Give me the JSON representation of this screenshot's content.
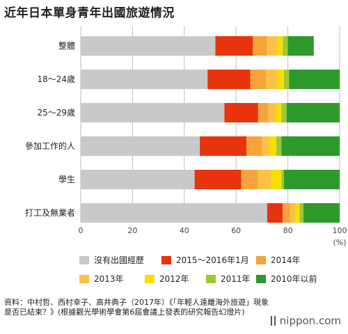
{
  "title": "近年日本單身青年出國旅遊情況",
  "chart_data": {
    "type": "bar",
    "orientation": "horizontal",
    "stacked": true,
    "categories": [
      "整體",
      "18～24歲",
      "25～29歲",
      "參加工作的人",
      "學生",
      "打工及無業者"
    ],
    "series": [
      {
        "name": "沒有出國經歷",
        "color": "#c9c9c9",
        "values": [
          52,
          49,
          55.5,
          46,
          44,
          72
        ]
      },
      {
        "name": "2015～2016年1月",
        "color": "#e8330f",
        "values": [
          14.5,
          16.5,
          13,
          18,
          18,
          6
        ]
      },
      {
        "name": "2014年",
        "color": "#f7a33b",
        "values": [
          5.5,
          6,
          4,
          6,
          6.5,
          3
        ]
      },
      {
        "name": "2013年",
        "color": "#fbc146",
        "values": [
          4,
          4.5,
          3,
          3,
          5,
          2
        ]
      },
      {
        "name": "2012年",
        "color": "#f7df00",
        "values": [
          2,
          2.5,
          2,
          2.5,
          4,
          1.5
        ]
      },
      {
        "name": "2011年",
        "color": "#9cc838",
        "values": [
          2,
          2,
          2,
          2,
          1,
          1.5
        ]
      },
      {
        "name": "2010年以前",
        "color": "#2e9a2c",
        "values": [
          10,
          19.5,
          20.5,
          22.5,
          21.5,
          14
        ]
      }
    ],
    "xlim": [
      0,
      100
    ],
    "xticks": [
      0,
      20,
      40,
      60,
      80,
      100
    ],
    "xunit": "(%)",
    "grid": true,
    "legend_position": "bottom"
  },
  "source_text": "資料：中村哲、西村幸子、高井典子（2017年）《「年輕人遠離海外旅遊」現象是否已結束？》(根據觀光學術學會第6屆會議上發表的研究報告幻燈片)",
  "brand": "nippon.com"
}
